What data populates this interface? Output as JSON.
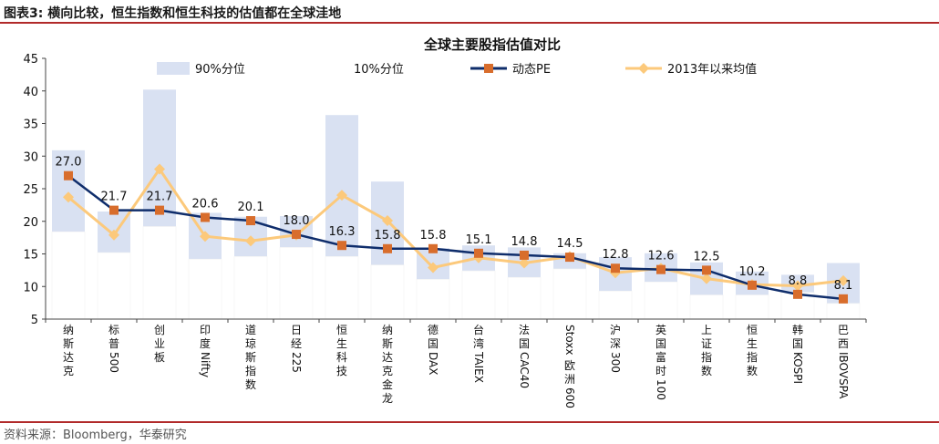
{
  "figure_title": "图表3:  横向比较，恒生指数和恒生科技的估值都在全球洼地",
  "source": "资料来源：Bloomberg，华泰研究",
  "chart_data": {
    "type": "line",
    "title": "全球主要股指估值对比",
    "ylim": [
      5,
      45
    ],
    "yticks": [
      5,
      10,
      15,
      20,
      25,
      30,
      35,
      40,
      45
    ],
    "categories": [
      "纳斯达克",
      "标普500",
      "创业板",
      "印度Nifty",
      "道琼斯指数",
      "日经225",
      "恒生科技",
      "纳斯达克金龙",
      "德国DAX",
      "台湾TAIEX",
      "法国CAC40",
      "Stoxx欧洲600",
      "沪深300",
      "英国富时100",
      "上证指数",
      "恒生指数",
      "韩国KOSPI",
      "巴西IBOVSPA"
    ],
    "legend": {
      "p90": "90%分位",
      "p10": "10%分位",
      "pe": "动态PE",
      "avg": "2013年以来均值"
    },
    "series": [
      {
        "name": "90%分位",
        "values": [
          30.9,
          21.5,
          40.2,
          21.3,
          20.7,
          20.8,
          36.3,
          26.1,
          15.9,
          16.3,
          16.0,
          15.1,
          14.5,
          15.1,
          13.7,
          12.3,
          11.8,
          13.6
        ]
      },
      {
        "name": "10%分位",
        "values": [
          18.4,
          15.2,
          19.2,
          14.2,
          14.6,
          16.0,
          14.6,
          13.3,
          11.1,
          12.4,
          11.4,
          12.7,
          9.3,
          10.7,
          8.7,
          8.7,
          9.1,
          7.4
        ]
      },
      {
        "name": "动态PE",
        "values": [
          27.0,
          21.7,
          21.7,
          20.6,
          20.1,
          18.0,
          16.3,
          15.8,
          15.8,
          15.1,
          14.8,
          14.5,
          12.8,
          12.6,
          12.5,
          10.2,
          8.8,
          8.1
        ]
      },
      {
        "name": "2013年以来均值",
        "values": [
          23.7,
          17.9,
          28.0,
          17.7,
          17.0,
          17.9,
          24.0,
          20.1,
          12.9,
          14.4,
          13.6,
          14.6,
          12.1,
          12.8,
          11.2,
          10.3,
          10.1,
          10.9
        ]
      }
    ],
    "colors": {
      "band": "#d9e1f2",
      "pe_line": "#0f2d6b",
      "pe_marker": "#d86d2c",
      "avg": "#fcc97b"
    },
    "legend_position": "top"
  }
}
